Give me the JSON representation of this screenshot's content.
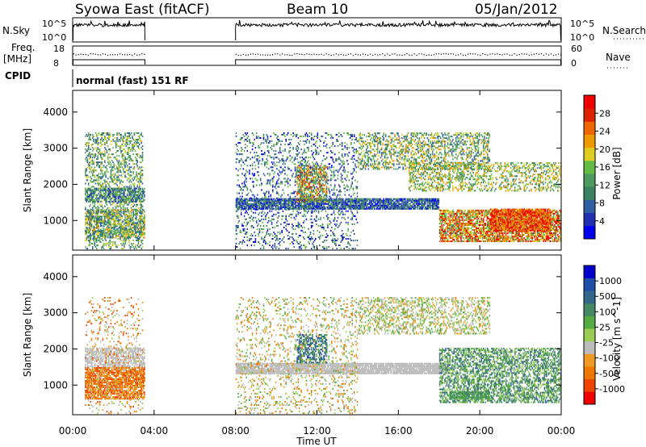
{
  "header": {
    "title": "Syowa East (fitACF)",
    "beam": "Beam 10",
    "date": "05/Jan/2012"
  },
  "panels": {
    "sky_search": {
      "left_label": "N.Sky",
      "right_label": "N.Search",
      "left_ticks": [
        "10^5",
        "10^0"
      ],
      "right_ticks": [
        "10^5",
        "10^0"
      ]
    },
    "freq_nave": {
      "left_label_line1": "Freq.",
      "left_label_line2": "[MHz]",
      "right_label": "Nave",
      "left_ticks": [
        "18",
        "8"
      ],
      "right_ticks": [
        "60",
        "0"
      ]
    },
    "cpid": {
      "label": "CPID",
      "text": "normal (fast) 151 RF"
    }
  },
  "colors": {
    "power": [
      "#0000ee",
      "#2030b0",
      "#2f5fa0",
      "#3a7f60",
      "#4c9a60",
      "#66bb44",
      "#ddcc22",
      "#ee9900",
      "#ee6600",
      "#dd2200",
      "#ee0000"
    ],
    "velocity": [
      "#0000cc",
      "#1f4ea8",
      "#336688",
      "#448866",
      "#55aa44",
      "#99cc55",
      "#bbbbbb",
      "#ee9922",
      "#ee7700",
      "#ee4400",
      "#ee0000"
    ]
  },
  "chart_data": [
    {
      "type": "heatmap",
      "name": "power",
      "title": "",
      "xlabel": "Time UT",
      "ylabel": "Slant Range [km]",
      "xlim": [
        0,
        24
      ],
      "ylim": [
        180,
        4600
      ],
      "x_ticks": [
        "00:00",
        "04:00",
        "08:00",
        "12:00",
        "16:00",
        "20:00",
        "00:00"
      ],
      "y_ticks": [
        1000,
        2000,
        3000,
        4000
      ],
      "colorbar_label": "Power [dB]",
      "colorbar_ticks": [
        "4",
        "8",
        "12",
        "16",
        "20",
        "24",
        "28"
      ],
      "data_gaps": [
        [
          3.55,
          8.0
        ]
      ],
      "regions": [
        {
          "t0": 0.6,
          "t1": 3.4,
          "r0": 200,
          "r1": 3400,
          "density": 0.35,
          "lo": 2,
          "hi": 6
        },
        {
          "t0": 0.6,
          "t1": 3.5,
          "r0": 1500,
          "r1": 1900,
          "density": 0.6,
          "lo": 1,
          "hi": 5
        },
        {
          "t0": 0.6,
          "t1": 3.5,
          "r0": 500,
          "r1": 1300,
          "density": 0.55,
          "lo": 2,
          "hi": 7
        },
        {
          "t0": 8.0,
          "t1": 18.0,
          "r0": 1300,
          "r1": 1600,
          "density": 0.85,
          "lo": 0,
          "hi": 4
        },
        {
          "t0": 8.0,
          "t1": 14.0,
          "r0": 200,
          "r1": 3400,
          "density": 0.18,
          "lo": 0,
          "hi": 5
        },
        {
          "t0": 11.0,
          "t1": 12.5,
          "r0": 1500,
          "r1": 2500,
          "density": 0.6,
          "lo": 2,
          "hi": 9
        },
        {
          "t0": 14.0,
          "t1": 20.5,
          "r0": 2400,
          "r1": 3400,
          "density": 0.4,
          "lo": 2,
          "hi": 7
        },
        {
          "t0": 16.5,
          "t1": 24.0,
          "r0": 1800,
          "r1": 2600,
          "density": 0.35,
          "lo": 3,
          "hi": 7
        },
        {
          "t0": 18.0,
          "t1": 24.0,
          "r0": 400,
          "r1": 1300,
          "density": 0.7,
          "lo": 4,
          "hi": 10
        },
        {
          "t0": 20.5,
          "t1": 23.5,
          "r0": 700,
          "r1": 1300,
          "density": 0.8,
          "lo": 7,
          "hi": 10
        }
      ]
    },
    {
      "type": "heatmap",
      "name": "velocity",
      "title": "",
      "xlabel": "Time UT",
      "ylabel": "Slant Range [km]",
      "xlim": [
        0,
        24
      ],
      "ylim": [
        180,
        4600
      ],
      "x_ticks": [
        "00:00",
        "04:00",
        "08:00",
        "12:00",
        "16:00",
        "20:00",
        "00:00"
      ],
      "y_ticks": [
        1000,
        2000,
        3000,
        4000
      ],
      "colorbar_label": "Velocity [m s^-1]",
      "colorbar_ticks": [
        "1000",
        "500",
        "100",
        "25",
        "-25",
        "-100",
        "-500",
        "-1000"
      ],
      "data_gaps": [
        [
          3.55,
          8.0
        ]
      ],
      "regions": [
        {
          "t0": 0.6,
          "t1": 3.5,
          "r0": 600,
          "r1": 1500,
          "density": 0.75,
          "lo": 7,
          "hi": 9
        },
        {
          "t0": 0.6,
          "t1": 3.5,
          "r0": 1500,
          "r1": 2000,
          "density": 0.6,
          "lo": 6,
          "hi": 6
        },
        {
          "t0": 0.6,
          "t1": 3.4,
          "r0": 200,
          "r1": 3400,
          "density": 0.12,
          "lo": 5,
          "hi": 9
        },
        {
          "t0": 8.0,
          "t1": 18.5,
          "r0": 1300,
          "r1": 1600,
          "density": 0.9,
          "lo": 6,
          "hi": 6
        },
        {
          "t0": 8.0,
          "t1": 14.0,
          "r0": 200,
          "r1": 3400,
          "density": 0.15,
          "lo": 4,
          "hi": 8
        },
        {
          "t0": 11.0,
          "t1": 12.5,
          "r0": 1600,
          "r1": 2400,
          "density": 0.5,
          "lo": 1,
          "hi": 4
        },
        {
          "t0": 14.0,
          "t1": 20.5,
          "r0": 2400,
          "r1": 3400,
          "density": 0.35,
          "lo": 4,
          "hi": 7
        },
        {
          "t0": 18.0,
          "t1": 24.0,
          "r0": 500,
          "r1": 2000,
          "density": 0.55,
          "lo": 2,
          "hi": 5
        },
        {
          "t0": 18.5,
          "t1": 20.5,
          "r0": 600,
          "r1": 800,
          "density": 0.8,
          "lo": 3,
          "hi": 4
        }
      ]
    }
  ]
}
